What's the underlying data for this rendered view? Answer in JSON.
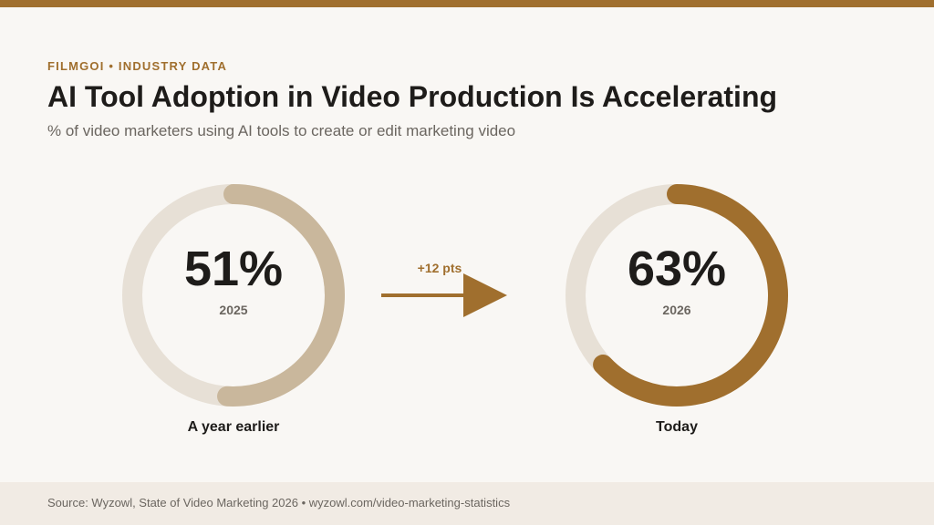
{
  "header": {
    "eyebrow": "FILMGOI • INDUSTRY DATA",
    "title": "AI Tool Adoption in Video Production Is Accelerating",
    "subtitle": "% of video marketers using AI tools to create or edit marketing video"
  },
  "colors": {
    "accent": "#a06f2e",
    "previous": "#c9b79c",
    "track": "#e7e0d6",
    "text_dark": "#1e1c1a",
    "text_muted": "#6b6660"
  },
  "chart_data": {
    "type": "donut",
    "title": "AI Tool Adoption in Video Production Is Accelerating",
    "subtitle": "% of video marketers using AI tools to create or edit marketing video",
    "unit": "%",
    "items": [
      {
        "year": "2025",
        "value": 51,
        "value_label": "51%",
        "caption": "A year earlier"
      },
      {
        "year": "2026",
        "value": 63,
        "value_label": "63%",
        "caption": "Today"
      }
    ],
    "change_label": "+12 pts"
  },
  "footer": {
    "source": "Source: Wyzowl, State of Video Marketing 2026 • wyzowl.com/video-marketing-statistics"
  }
}
